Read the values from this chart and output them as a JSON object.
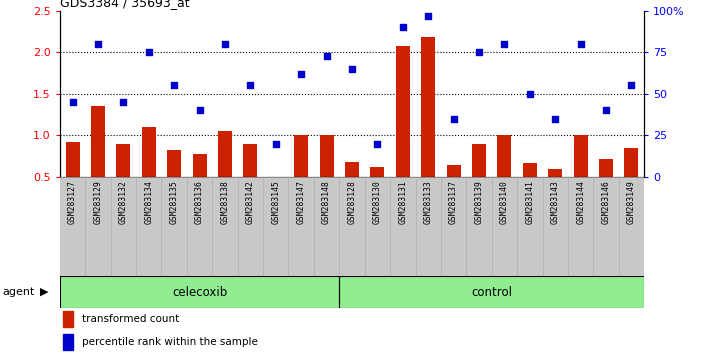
{
  "title": "GDS3384 / 35693_at",
  "samples": [
    "GSM283127",
    "GSM283129",
    "GSM283132",
    "GSM283134",
    "GSM283135",
    "GSM283136",
    "GSM283138",
    "GSM283142",
    "GSM283145",
    "GSM283147",
    "GSM283148",
    "GSM283128",
    "GSM283130",
    "GSM283131",
    "GSM283133",
    "GSM283137",
    "GSM283139",
    "GSM283140",
    "GSM283141",
    "GSM283143",
    "GSM283144",
    "GSM283146",
    "GSM283149"
  ],
  "bar_values": [
    0.92,
    1.35,
    0.9,
    1.1,
    0.82,
    0.78,
    1.05,
    0.9,
    0.5,
    1.0,
    1.0,
    0.68,
    0.62,
    2.07,
    2.18,
    0.65,
    0.9,
    1.0,
    0.67,
    0.6,
    1.0,
    0.72,
    0.85
  ],
  "dot_pct": [
    45,
    80,
    45,
    75,
    55,
    40,
    80,
    55,
    20,
    62,
    73,
    65,
    20,
    90,
    97,
    35,
    75,
    80,
    50,
    35,
    80,
    40,
    55
  ],
  "celecoxib_count": 11,
  "n_total": 23,
  "ylim_left": [
    0.5,
    2.5
  ],
  "ylim_right": [
    0,
    100
  ],
  "yticks_left": [
    0.5,
    1.0,
    1.5,
    2.0,
    2.5
  ],
  "yticks_right": [
    0,
    25,
    50,
    75,
    100
  ],
  "bar_color": "#cc2200",
  "dot_color": "#0000cc",
  "group_color": "#90ee90",
  "xtick_bg": "#c8c8c8",
  "legend_red": "transformed count",
  "legend_blue": "percentile rank within the sample",
  "celecoxib_label": "celecoxib",
  "control_label": "control",
  "agent_label": "agent"
}
